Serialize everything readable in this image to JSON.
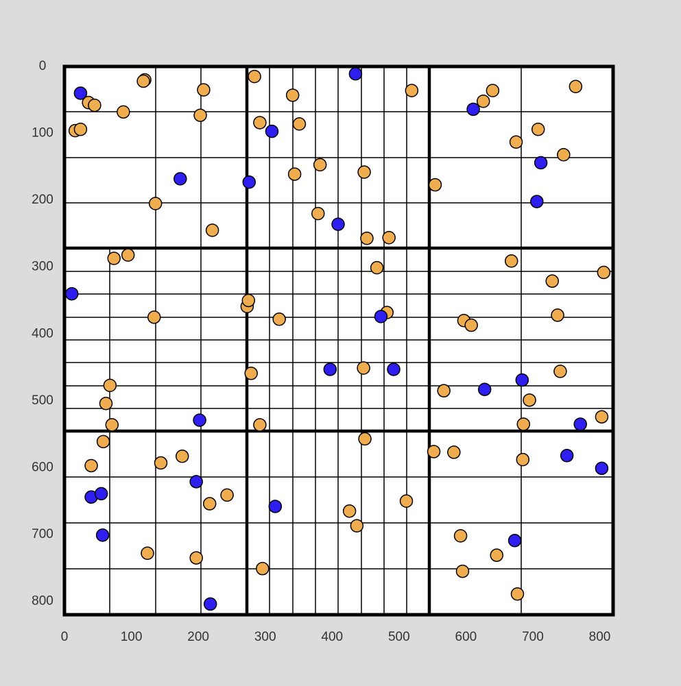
{
  "chart_data": {
    "type": "scatter",
    "xlim": [
      0,
      820
    ],
    "ylim": [
      0,
      820
    ],
    "y_inverted": true,
    "grid": false,
    "xticks": [
      0,
      100,
      200,
      300,
      400,
      500,
      600,
      700,
      800
    ],
    "yticks": [
      0,
      100,
      200,
      300,
      400,
      500,
      600,
      700,
      800
    ],
    "series": [
      {
        "color": "#efad4f",
        "x": [
          120,
          118,
          208,
          36,
          45,
          88,
          16,
          24,
          203,
          136,
          221,
          284,
          341,
          292,
          351,
          344,
          382,
          448,
          379,
          452,
          485,
          519,
          764,
          640,
          626,
          708,
          675,
          746,
          554,
          74,
          95,
          134,
          68,
          62,
          71,
          273,
          275,
          321,
          467,
          482,
          447,
          279,
          292,
          668,
          729,
          806,
          737,
          597,
          608,
          741,
          567,
          695,
          686,
          803,
          58,
          40,
          144,
          176,
          217,
          243,
          124,
          197,
          449,
          426,
          437,
          511,
          296,
          552,
          582,
          685,
          592,
          646,
          595,
          677
        ],
        "values": [
          20,
          22,
          35,
          54,
          58,
          68,
          96,
          94,
          73,
          205,
          245,
          15,
          43,
          84,
          86,
          161,
          147,
          158,
          220,
          257,
          256,
          36,
          30,
          36,
          52,
          94,
          113,
          132,
          177,
          287,
          282,
          375,
          477,
          504,
          536,
          359,
          350,
          378,
          301,
          368,
          451,
          459,
          536,
          291,
          321,
          308,
          372,
          380,
          387,
          456,
          485,
          499,
          535,
          524,
          561,
          597,
          593,
          583,
          654,
          641,
          728,
          735,
          557,
          665,
          687,
          650,
          751,
          576,
          577,
          588,
          702,
          731,
          755,
          789
        ]
      },
      {
        "color": "#2e1ff0",
        "x": [
          24,
          173,
          310,
          409,
          435,
          276,
          611,
          712,
          706,
          11,
          473,
          397,
          492,
          202,
          684,
          628,
          771,
          197,
          40,
          55,
          57,
          218,
          315,
          751,
          803,
          673
        ],
        "values": [
          40,
          168,
          97,
          236,
          11,
          173,
          64,
          144,
          202,
          340,
          374,
          453,
          453,
          529,
          469,
          483,
          535,
          621,
          644,
          639,
          701,
          804,
          658,
          582,
          601,
          709
        ]
      }
    ]
  }
}
